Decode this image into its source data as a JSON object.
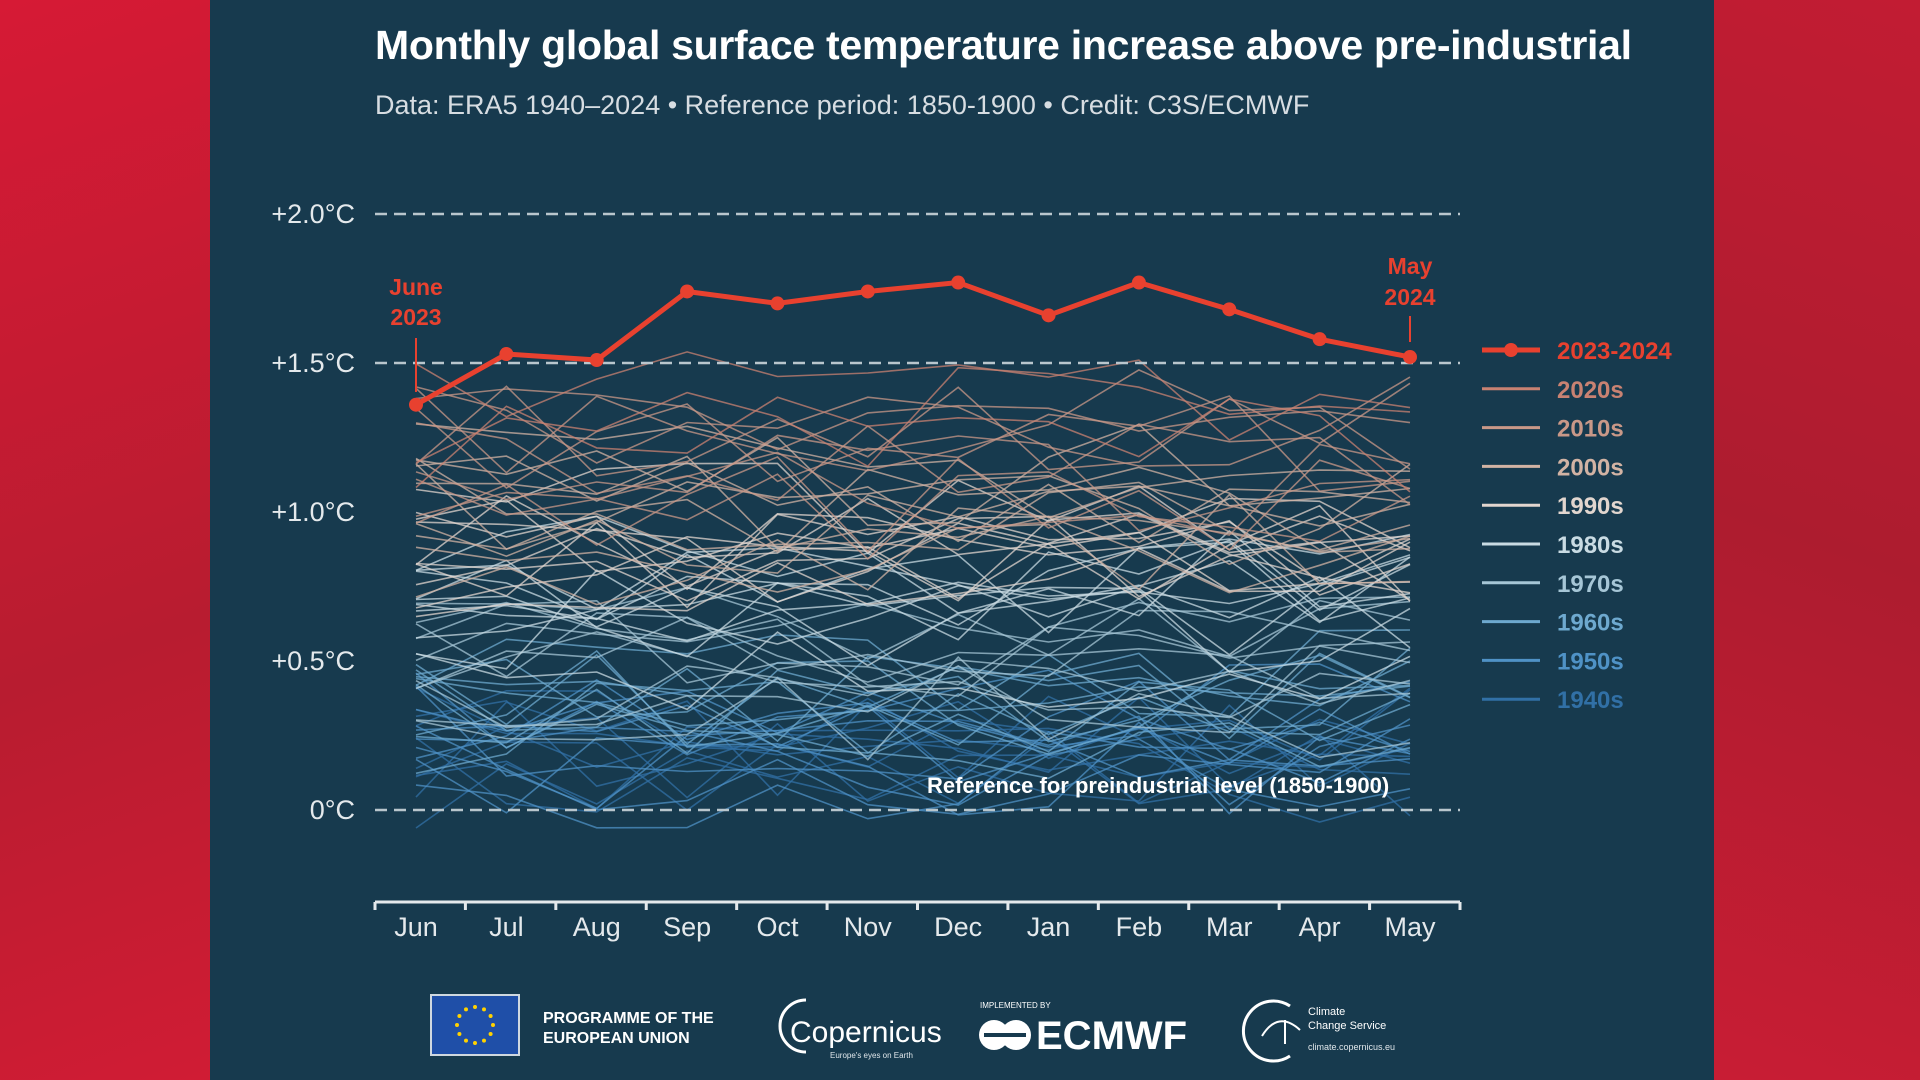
{
  "title": "Monthly global surface temperature increase above pre-industrial",
  "subtitle": "Data: ERA5 1940–2024 • Reference period: 1850-1900 • Credit: C3S/ECMWF",
  "chart_data": {
    "type": "line",
    "categories": [
      "Jun",
      "Jul",
      "Aug",
      "Sep",
      "Oct",
      "Nov",
      "Dec",
      "Jan",
      "Feb",
      "Mar",
      "Apr",
      "May"
    ],
    "ylim": [
      -0.3,
      2.0
    ],
    "y_ticks": [
      {
        "value": 2.0,
        "label": "+2.0°C"
      },
      {
        "value": 1.5,
        "label": "+1.5°C"
      },
      {
        "value": 1.0,
        "label": "+1.0°C"
      },
      {
        "value": 0.5,
        "label": "+0.5°C"
      },
      {
        "value": 0.0,
        "label": "0°C"
      }
    ],
    "grid": "dashed lines at 0, +1.5 and +2.0",
    "legend_position": "right",
    "highlight_series": {
      "name": "2023-2024",
      "color": "#e8412f",
      "values": [
        1.36,
        1.53,
        1.51,
        1.74,
        1.7,
        1.74,
        1.77,
        1.66,
        1.77,
        1.68,
        1.58,
        1.52
      ]
    },
    "decade_series": [
      {
        "name": "2020s",
        "color": "#c98272"
      },
      {
        "name": "2010s",
        "color": "#c99888"
      },
      {
        "name": "2000s",
        "color": "#d2b3a4"
      },
      {
        "name": "1990s",
        "color": "#e2d6cf"
      },
      {
        "name": "1980s",
        "color": "#c9dbe3"
      },
      {
        "name": "1970s",
        "color": "#a6c6d6"
      },
      {
        "name": "1960s",
        "color": "#6ea9cf"
      },
      {
        "name": "1950s",
        "color": "#4f92c6"
      },
      {
        "name": "1940s",
        "color": "#3170a6"
      }
    ],
    "annotations": {
      "start_line1": "June",
      "start_line2": "2023",
      "end_line1": "May",
      "end_line2": "2024",
      "reference": "Reference for preindustrial level (1850-1900)"
    }
  },
  "logos": {
    "eu_line1": "PROGRAMME OF THE",
    "eu_line2": "EUROPEAN UNION",
    "copernicus": "Copernicus",
    "copernicus_tagline": "Europe's eyes on Earth",
    "ecmwf_pre": "IMPLEMENTED BY",
    "ecmwf": "ECMWF",
    "c3s_line1": "Climate",
    "c3s_line2": "Change Service",
    "c3s_url": "climate.copernicus.eu"
  }
}
